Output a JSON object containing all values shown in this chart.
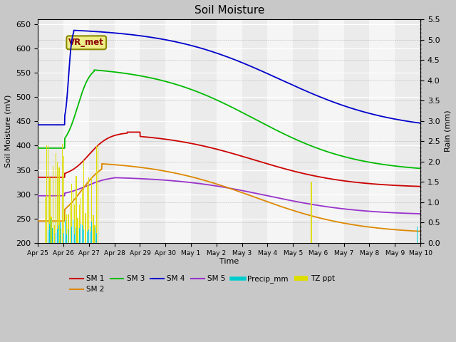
{
  "title": "Soil Moisture",
  "xlabel": "Time",
  "ylabel_left": "Soil Moisture (mV)",
  "ylabel_right": "Rain (mm)",
  "ylim_left": [
    200,
    660
  ],
  "ylim_right": [
    0.0,
    5.5
  ],
  "yticks_left": [
    200,
    250,
    300,
    350,
    400,
    450,
    500,
    550,
    600,
    650
  ],
  "yticks_right": [
    0.0,
    0.5,
    1.0,
    1.5,
    2.0,
    2.5,
    3.0,
    3.5,
    4.0,
    4.5,
    5.0,
    5.5
  ],
  "colors": {
    "SM1": "#cc0000",
    "SM2": "#dd8800",
    "SM3": "#00bb00",
    "SM4": "#0000cc",
    "SM5": "#9933cc",
    "Precip": "#00cccc",
    "TZ": "#dddd00"
  },
  "tick_labels": [
    "Apr 25",
    "Apr 26",
    "Apr 27",
    "Apr 28",
    "Apr 29",
    "Apr 30",
    "May 1",
    "May 2",
    "May 3",
    "May 4",
    "May 5",
    "May 6",
    "May 7",
    "May 8",
    "May 9",
    "May 10"
  ],
  "annotation_text": "VR_met",
  "bg_bands": [
    "#ebebeb",
    "#f5f5f5"
  ]
}
